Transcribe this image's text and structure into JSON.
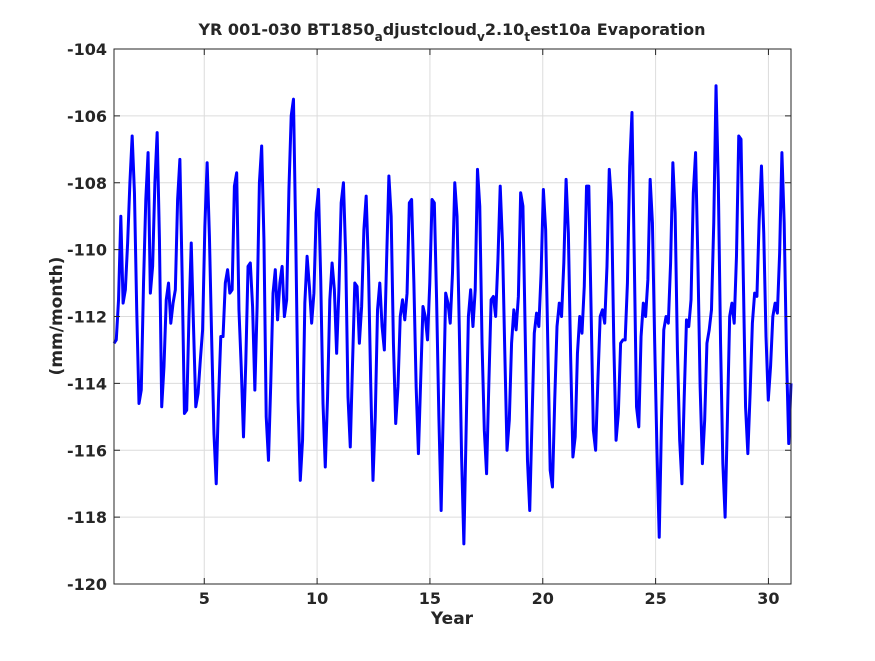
{
  "chart_data": {
    "type": "line",
    "title": "YR 001-030 BT1850",
    "title_parts": [
      "YR 001-030 BT1850",
      "a",
      "djustcloud",
      "v",
      "2.10",
      "t",
      "est10a Evaporation"
    ],
    "xlabel": "Year",
    "ylabel": "(mm/month)",
    "xlim": [
      1,
      31
    ],
    "ylim": [
      -120,
      -104
    ],
    "xticks": [
      5,
      10,
      15,
      20,
      25,
      30
    ],
    "yticks": [
      -120,
      -118,
      -116,
      -114,
      -112,
      -110,
      -108,
      -106,
      -104
    ],
    "grid": true,
    "line_color": "#0000ff",
    "series": [
      {
        "values": [
          -112.8,
          -112.7,
          -111.5,
          -109.0,
          -111.6,
          -111.2,
          -109.8,
          -108.0,
          -106.6,
          -108.3,
          -111.8,
          -114.6,
          -114.2,
          -111.0,
          -108.5,
          -107.1,
          -111.3,
          -110.5,
          -108.0,
          -106.5,
          -109.7,
          -114.7,
          -113.5,
          -111.5,
          -111.0,
          -112.2,
          -111.6,
          -111.2,
          -108.5,
          -107.3,
          -110.8,
          -114.9,
          -114.8,
          -112.0,
          -109.8,
          -112.3,
          -114.7,
          -114.3,
          -113.3,
          -112.4,
          -109.3,
          -107.4,
          -109.6,
          -112.7,
          -115.5,
          -117.0,
          -114.5,
          -112.6,
          -112.6,
          -111.0,
          -110.6,
          -111.3,
          -111.2,
          -108.1,
          -107.7,
          -111.8,
          -113.5,
          -115.6,
          -113.4,
          -110.5,
          -110.4,
          -111.7,
          -114.2,
          -111.7,
          -108.0,
          -106.9,
          -109.7,
          -115.0,
          -116.3,
          -114.0,
          -111.3,
          -110.6,
          -112.1,
          -111.0,
          -110.5,
          -112.0,
          -111.5,
          -108.2,
          -106.0,
          -105.5,
          -109.6,
          -114.5,
          -116.9,
          -115.7,
          -111.6,
          -110.2,
          -111.1,
          -112.2,
          -111.3,
          -108.9,
          -108.2,
          -110.9,
          -114.6,
          -116.5,
          -114.4,
          -111.5,
          -110.4,
          -111.2,
          -113.1,
          -111.2,
          -108.6,
          -108.0,
          -110.2,
          -114.4,
          -115.9,
          -113.4,
          -111.0,
          -111.1,
          -112.8,
          -111.7,
          -109.4,
          -108.4,
          -110.5,
          -114.0,
          -116.9,
          -115.0,
          -111.8,
          -111.0,
          -112.3,
          -113.0,
          -110.3,
          -107.8,
          -109.0,
          -112.8,
          -115.2,
          -114.1,
          -112.0,
          -111.5,
          -112.1,
          -111.3,
          -108.6,
          -108.5,
          -111.0,
          -114.1,
          -116.1,
          -113.9,
          -111.7,
          -112.0,
          -112.7,
          -111.0,
          -108.5,
          -108.6,
          -111.5,
          -115.0,
          -117.8,
          -114.6,
          -111.3,
          -111.6,
          -112.2,
          -110.7,
          -108.0,
          -109.0,
          -112.4,
          -116.2,
          -118.8,
          -115.4,
          -112.0,
          -111.2,
          -112.3,
          -111.2,
          -107.6,
          -108.7,
          -112.8,
          -115.4,
          -116.7,
          -114.0,
          -111.5,
          -111.4,
          -112.0,
          -110.3,
          -108.1,
          -109.8,
          -113.0,
          -116.0,
          -115.1,
          -112.8,
          -111.8,
          -112.4,
          -111.4,
          -108.3,
          -108.7,
          -112.5,
          -116.3,
          -117.8,
          -115.1,
          -112.5,
          -111.9,
          -112.3,
          -110.7,
          -108.2,
          -109.4,
          -113.0,
          -116.6,
          -117.1,
          -114.5,
          -112.3,
          -111.6,
          -112.0,
          -110.4,
          -107.9,
          -109.5,
          -113.2,
          -116.2,
          -115.6,
          -113.1,
          -112.0,
          -112.5,
          -111.1,
          -108.1,
          -108.1,
          -111.8,
          -115.4,
          -116.0,
          -113.9,
          -112.0,
          -111.8,
          -112.2,
          -110.5,
          -107.6,
          -108.6,
          -112.8,
          -115.7,
          -114.9,
          -112.8,
          -112.7,
          -112.7,
          -111.0,
          -107.5,
          -105.9,
          -110.2,
          -114.7,
          -115.3,
          -112.6,
          -111.6,
          -112.0,
          -110.9,
          -107.9,
          -109.2,
          -112.8,
          -116.0,
          -118.6,
          -115.1,
          -112.4,
          -112.0,
          -112.2,
          -110.4,
          -107.4,
          -108.9,
          -113.0,
          -115.7,
          -117.0,
          -114.4,
          -112.1,
          -112.3,
          -111.5,
          -108.3,
          -107.1,
          -110.3,
          -114.1,
          -116.4,
          -115.1,
          -112.8,
          -112.4,
          -111.8,
          -109.2,
          -105.1,
          -108.0,
          -112.8,
          -116.4,
          -118.0,
          -115.1,
          -112.0,
          -111.6,
          -112.2,
          -110.2,
          -106.6,
          -106.7,
          -110.8,
          -114.7,
          -116.1,
          -114.3,
          -112.2,
          -111.3,
          -111.4,
          -109.1,
          -107.5,
          -109.5,
          -112.6,
          -114.5,
          -113.5,
          -112.0,
          -111.6,
          -111.9,
          -110.1,
          -107.1,
          -109.2,
          -113.1,
          -115.8,
          -114.0
        ]
      }
    ]
  }
}
